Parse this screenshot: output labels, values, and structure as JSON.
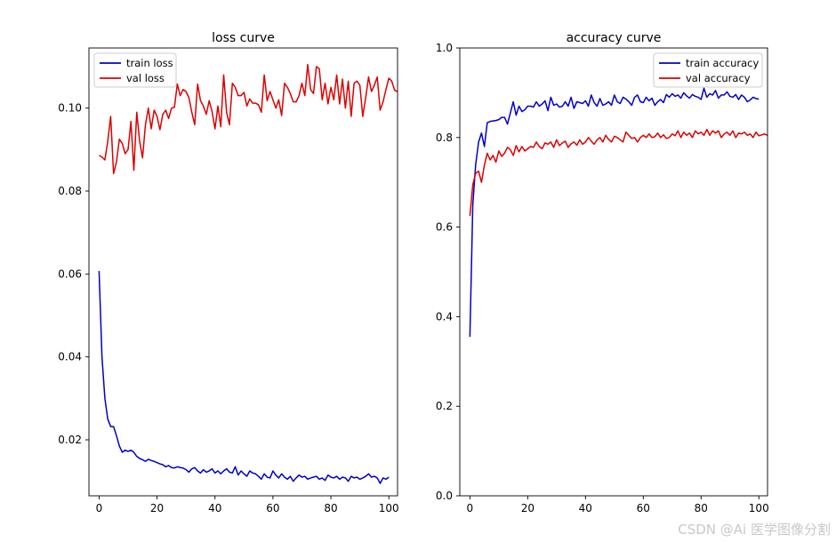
{
  "colors": {
    "train": "#0000cc",
    "val": "#dd0000",
    "axes": "#000000",
    "background": "#ffffff"
  },
  "watermark": "CSDN @Ai 医学图像分割",
  "chart_data": [
    {
      "type": "line",
      "title": "loss curve",
      "xlabel": "",
      "ylabel": "",
      "xlim": [
        -3.5,
        103
      ],
      "ylim": [
        0.0065,
        0.1145
      ],
      "xticks": [
        0,
        20,
        40,
        60,
        80,
        100
      ],
      "yticks": [
        0.02,
        0.04,
        0.06,
        0.08,
        0.1
      ],
      "ytick_labels": [
        "0.02",
        "0.04",
        "0.06",
        "0.08",
        "0.10"
      ],
      "grid": false,
      "legend": "upper left",
      "series": [
        {
          "name": "train loss",
          "color": "#0000cc",
          "x_start": 0,
          "values": [
            0.0607,
            0.04,
            0.03,
            0.025,
            0.0232,
            0.0232,
            0.021,
            0.0185,
            0.017,
            0.0175,
            0.0172,
            0.0175,
            0.017,
            0.016,
            0.0155,
            0.0152,
            0.0148,
            0.0153,
            0.015,
            0.0148,
            0.0145,
            0.0142,
            0.014,
            0.0135,
            0.0138,
            0.0133,
            0.0132,
            0.0135,
            0.0133,
            0.0132,
            0.0128,
            0.0122,
            0.013,
            0.0133,
            0.0125,
            0.012,
            0.0128,
            0.0122,
            0.0125,
            0.013,
            0.012,
            0.0125,
            0.0118,
            0.0125,
            0.013,
            0.0122,
            0.012,
            0.0135,
            0.0115,
            0.0125,
            0.0118,
            0.0112,
            0.0125,
            0.012,
            0.0118,
            0.0112,
            0.0105,
            0.0118,
            0.011,
            0.0108,
            0.0125,
            0.0115,
            0.0108,
            0.0118,
            0.011,
            0.0105,
            0.0112,
            0.01,
            0.0108,
            0.0115,
            0.011,
            0.0112,
            0.0105,
            0.0108,
            0.011,
            0.0112,
            0.0105,
            0.0108,
            0.0102,
            0.0115,
            0.011,
            0.0108,
            0.0112,
            0.0105,
            0.011,
            0.0108,
            0.01,
            0.0112,
            0.0108,
            0.011,
            0.0105,
            0.0108,
            0.0112,
            0.0118,
            0.011,
            0.0112,
            0.0108,
            0.0095,
            0.0108,
            0.0105,
            0.011
          ]
        },
        {
          "name": "val loss",
          "color": "#dd0000",
          "x_start": 0,
          "values": [
            0.0886,
            0.0882,
            0.0875,
            0.092,
            0.098,
            0.0842,
            0.087,
            0.0925,
            0.0915,
            0.089,
            0.09,
            0.0968,
            0.085,
            0.099,
            0.092,
            0.088,
            0.096,
            0.1,
            0.095,
            0.0995,
            0.098,
            0.0948,
            0.0985,
            0.0995,
            0.0975,
            0.1,
            0.1002,
            0.1058,
            0.103,
            0.1045,
            0.104,
            0.1025,
            0.099,
            0.096,
            0.1058,
            0.1018,
            0.1005,
            0.0985,
            0.1018,
            0.0992,
            0.095,
            0.1005,
            0.0955,
            0.108,
            0.099,
            0.096,
            0.106,
            0.105,
            0.103,
            0.103,
            0.1038,
            0.1005,
            0.1022,
            0.1012,
            0.1012,
            0.1008,
            0.099,
            0.108,
            0.1018,
            0.104,
            0.102,
            0.1,
            0.102,
            0.0982,
            0.106,
            0.105,
            0.1035,
            0.1015,
            0.1015,
            0.103,
            0.106,
            0.103,
            0.1105,
            0.1045,
            0.1035,
            0.11,
            0.1095,
            0.102,
            0.106,
            0.101,
            0.105,
            0.102,
            0.108,
            0.101,
            0.107,
            0.1,
            0.1065,
            0.098,
            0.106,
            0.1065,
            0.1055,
            0.098,
            0.1025,
            0.1075,
            0.104,
            0.1055,
            0.1075,
            0.0995,
            0.1015,
            0.1045,
            0.1072,
            0.1065,
            0.1043,
            0.104
          ]
        }
      ]
    },
    {
      "type": "line",
      "title": "accuracy curve",
      "xlabel": "",
      "ylabel": "",
      "xlim": [
        -3.5,
        103
      ],
      "ylim": [
        0.0,
        1.0
      ],
      "xticks": [
        0,
        20,
        40,
        60,
        80,
        100
      ],
      "yticks": [
        0.0,
        0.2,
        0.4,
        0.6,
        0.8,
        1.0
      ],
      "ytick_labels": [
        "0.0",
        "0.2",
        "0.4",
        "0.6",
        "0.8",
        "1.0"
      ],
      "grid": false,
      "legend": "upper right",
      "series": [
        {
          "name": "train accuracy",
          "color": "#0000cc",
          "x_start": 0,
          "values": [
            0.355,
            0.65,
            0.74,
            0.79,
            0.81,
            0.78,
            0.833,
            0.836,
            0.837,
            0.838,
            0.84,
            0.845,
            0.845,
            0.83,
            0.855,
            0.88,
            0.85,
            0.87,
            0.858,
            0.862,
            0.87,
            0.87,
            0.868,
            0.88,
            0.87,
            0.875,
            0.882,
            0.86,
            0.89,
            0.872,
            0.875,
            0.868,
            0.87,
            0.88,
            0.87,
            0.89,
            0.865,
            0.88,
            0.878,
            0.876,
            0.882,
            0.87,
            0.895,
            0.878,
            0.87,
            0.887,
            0.872,
            0.875,
            0.88,
            0.872,
            0.895,
            0.88,
            0.876,
            0.89,
            0.886,
            0.88,
            0.872,
            0.89,
            0.895,
            0.88,
            0.878,
            0.89,
            0.882,
            0.888,
            0.872,
            0.88,
            0.885,
            0.878,
            0.896,
            0.89,
            0.898,
            0.892,
            0.895,
            0.888,
            0.9,
            0.893,
            0.888,
            0.896,
            0.892,
            0.89,
            0.885,
            0.91,
            0.89,
            0.898,
            0.895,
            0.905,
            0.888,
            0.895,
            0.895,
            0.902,
            0.892,
            0.89,
            0.896,
            0.885,
            0.895,
            0.89,
            0.88,
            0.884,
            0.89,
            0.887,
            0.886
          ]
        },
        {
          "name": "val accuracy",
          "color": "#dd0000",
          "x_start": 0,
          "values": [
            0.625,
            0.695,
            0.72,
            0.725,
            0.7,
            0.738,
            0.765,
            0.75,
            0.76,
            0.745,
            0.77,
            0.758,
            0.765,
            0.778,
            0.773,
            0.76,
            0.782,
            0.768,
            0.78,
            0.77,
            0.775,
            0.78,
            0.778,
            0.79,
            0.78,
            0.775,
            0.788,
            0.785,
            0.79,
            0.778,
            0.795,
            0.782,
            0.788,
            0.792,
            0.778,
            0.786,
            0.79,
            0.783,
            0.795,
            0.785,
            0.79,
            0.8,
            0.792,
            0.785,
            0.795,
            0.8,
            0.79,
            0.805,
            0.796,
            0.79,
            0.803,
            0.8,
            0.795,
            0.79,
            0.812,
            0.805,
            0.798,
            0.8,
            0.79,
            0.8,
            0.805,
            0.8,
            0.808,
            0.8,
            0.802,
            0.81,
            0.8,
            0.806,
            0.798,
            0.8,
            0.808,
            0.804,
            0.815,
            0.8,
            0.812,
            0.805,
            0.81,
            0.8,
            0.815,
            0.808,
            0.812,
            0.805,
            0.818,
            0.805,
            0.815,
            0.81,
            0.815,
            0.8,
            0.808,
            0.812,
            0.805,
            0.815,
            0.8,
            0.81,
            0.808,
            0.812,
            0.805,
            0.808,
            0.8,
            0.812,
            0.804,
            0.806,
            0.808,
            0.805
          ]
        }
      ]
    }
  ]
}
